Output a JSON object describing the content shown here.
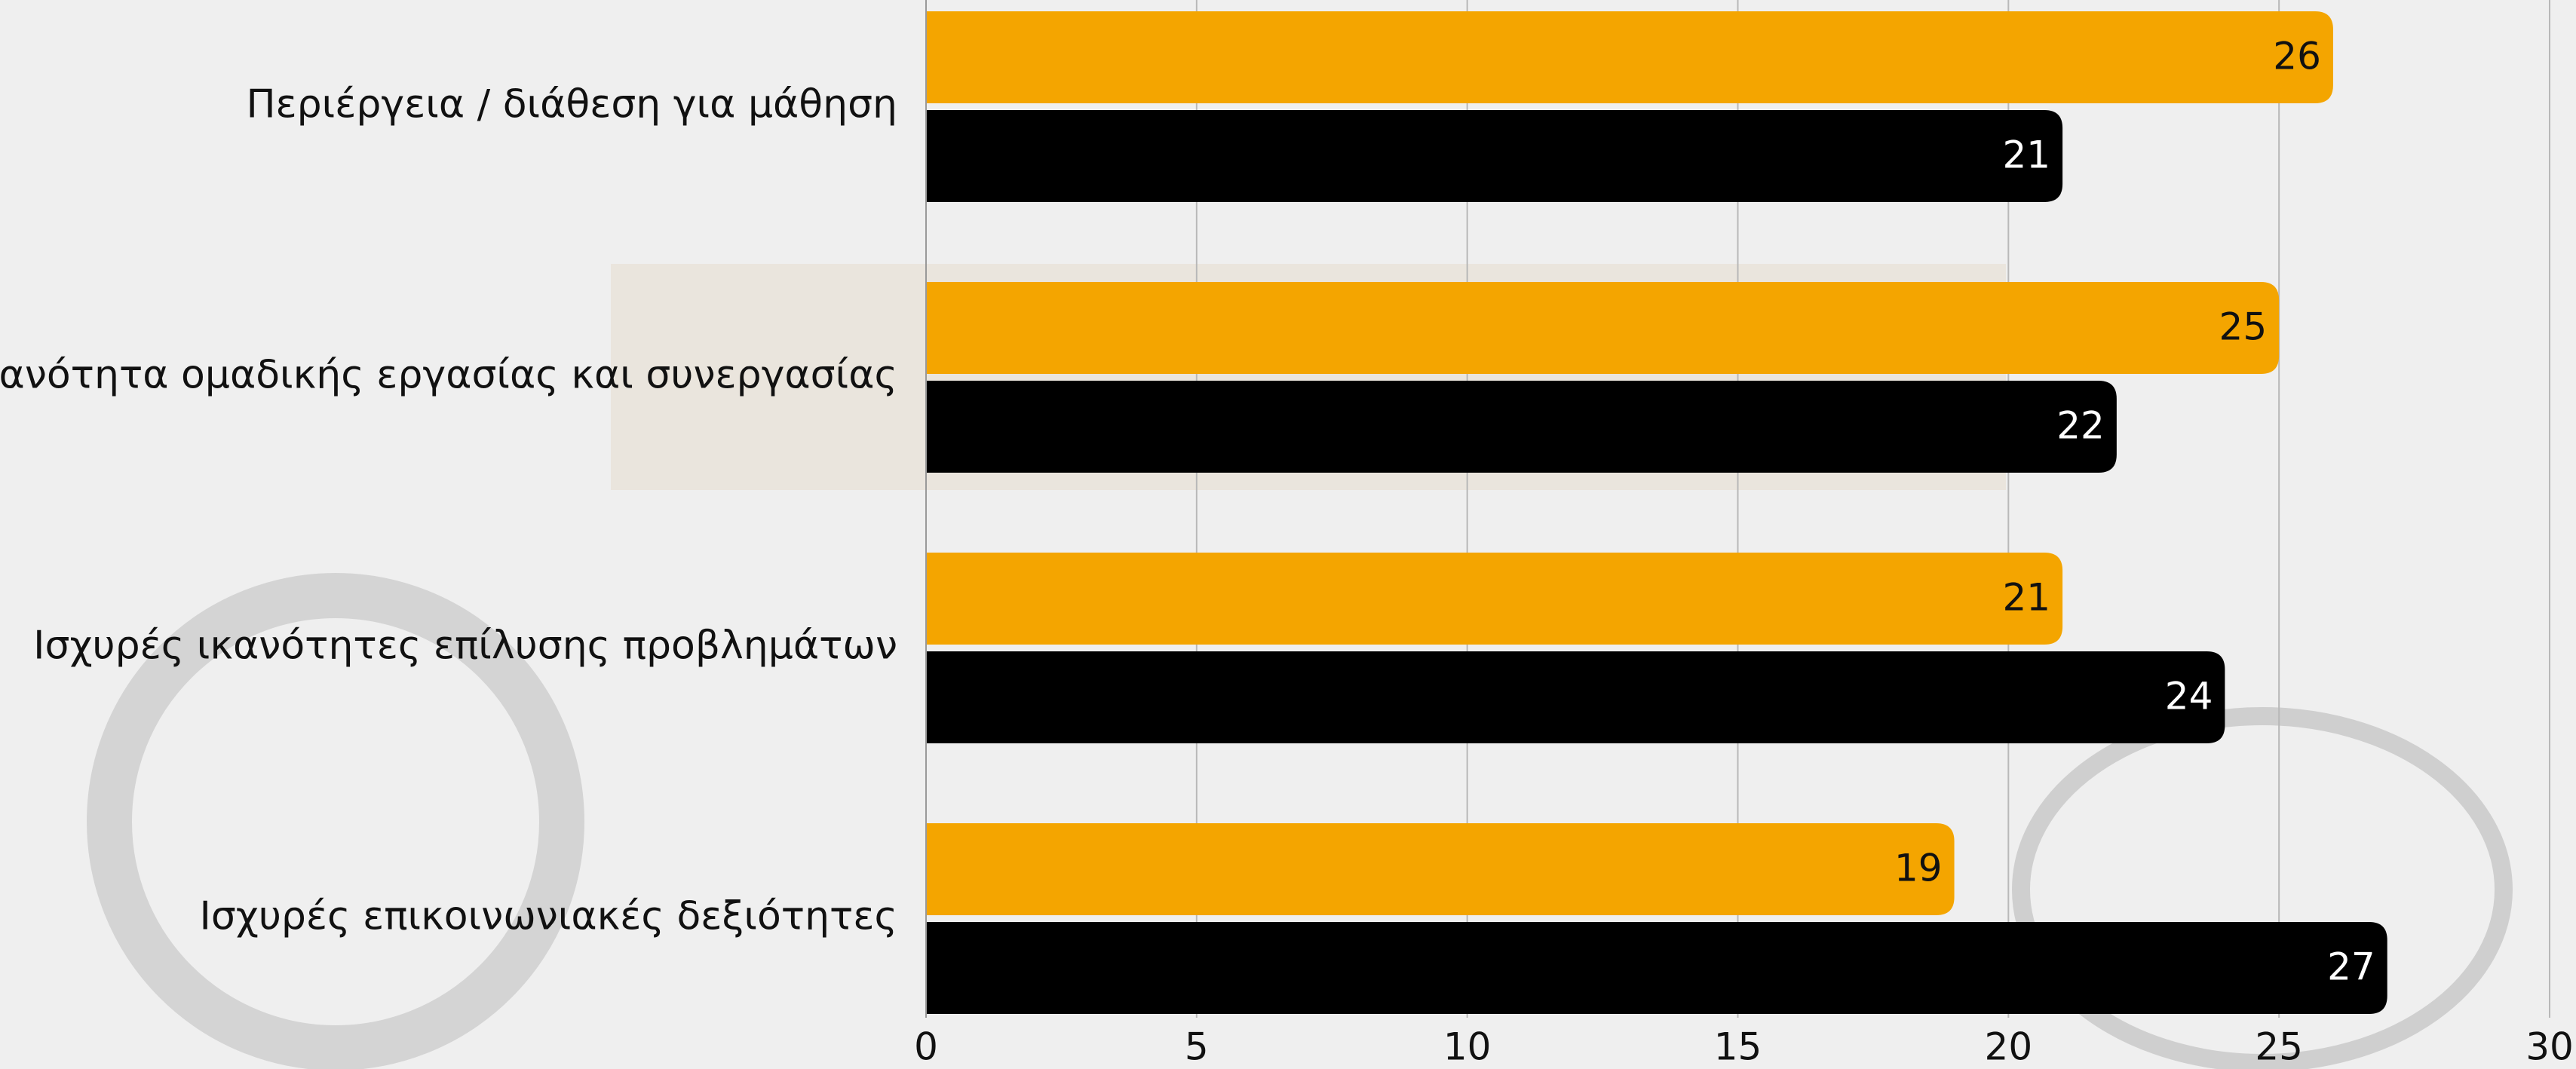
{
  "chart_data": {
    "type": "bar",
    "orientation": "horizontal",
    "categories": [
      "Περιέργεια / διάθεση για μάθηση",
      "Ικανότητα ομαδικής εργασίας και συνεργασίας",
      "Ισχυρές ικανότητες επίλυσης προβλημάτων",
      "Ισχυρές επικοινωνιακές δεξιότητες"
    ],
    "series": [
      {
        "color": "#f4a500",
        "values": [
          26,
          25,
          21,
          19
        ]
      },
      {
        "color": "#000000",
        "values": [
          21,
          22,
          24,
          27
        ]
      }
    ],
    "xlim": [
      0,
      30
    ],
    "xticks": [
      0,
      5,
      10,
      15,
      20,
      25,
      30
    ],
    "grid": true
  }
}
